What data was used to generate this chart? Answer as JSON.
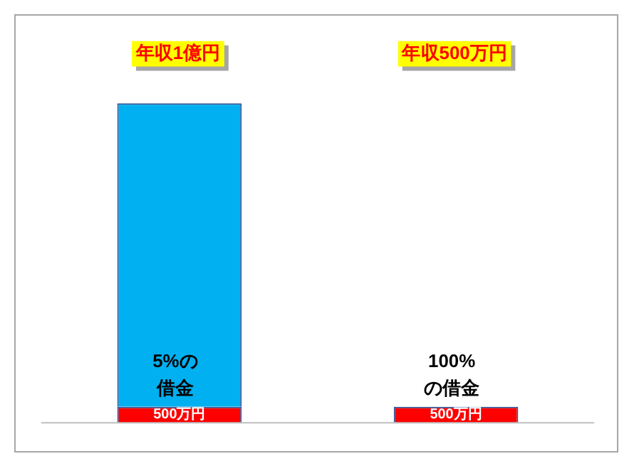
{
  "chart_data": {
    "type": "bar",
    "stacked": true,
    "categories": [
      "年収1億円",
      "年収500万円"
    ],
    "series": [
      {
        "color": "#ff0000",
        "values": [
          500,
          500
        ],
        "value_labels": [
          "500万円",
          "500万円"
        ]
      },
      {
        "color": "#00b0f0",
        "values": [
          9500,
          null
        ]
      }
    ],
    "annotations": [
      {
        "text": "5%の借金",
        "x": "年収1億円",
        "y": 500
      },
      {
        "text": "100%の借金",
        "x": "年収500万円",
        "y": 500
      }
    ],
    "legend": false
  }
}
